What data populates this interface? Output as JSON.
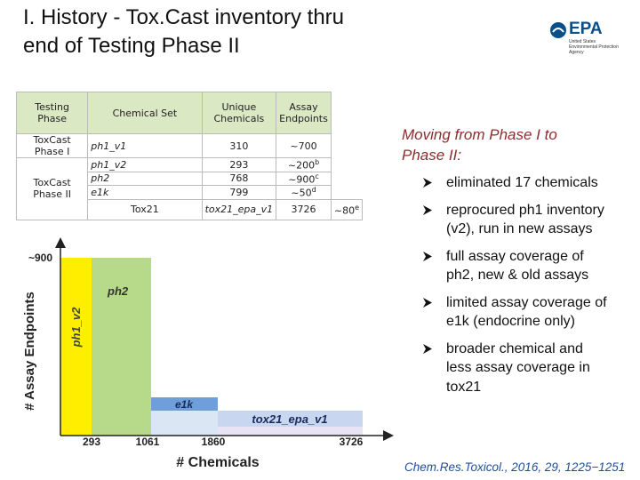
{
  "header": {
    "title_lines": [
      "I. History - Tox.Cast inventory thru",
      "end of Testing Phase II"
    ],
    "logo": {
      "acronym": "EPA",
      "agency_lines": [
        "United States",
        "Environmental Protection",
        "Agency"
      ]
    }
  },
  "table": {
    "columns": [
      "Testing Phase",
      "Chemical Set",
      "Unique Chemicals",
      "Assay Endpoints"
    ],
    "rows": [
      {
        "phase": "ToxCast Phase I",
        "set": "ph1_v1",
        "chemicals": "310",
        "endpoints": "~700",
        "note": ""
      },
      {
        "phase": "ToxCast Phase II",
        "set": "ph1_v2",
        "chemicals": "293",
        "endpoints": "~200",
        "note": "b"
      },
      {
        "phase": "",
        "set": "ph2",
        "chemicals": "768",
        "endpoints": "~900",
        "note": "c"
      },
      {
        "phase": "",
        "set": "e1k",
        "chemicals": "799",
        "endpoints": "~50",
        "note": "d"
      },
      {
        "phase": "Tox21",
        "set": "tox21_epa_v1",
        "chemicals": "3726",
        "endpoints": "~80",
        "note": "e"
      }
    ]
  },
  "diagram": {
    "y_axis_label": "# Assay Endpoints",
    "x_axis_label": "# Chemicals",
    "y_mark": "~900",
    "x_marks": [
      "293",
      "1061",
      "1860",
      "3726"
    ],
    "regions": [
      "ph1_v2",
      "ph2",
      "e1k",
      "tox21_epa_v1"
    ]
  },
  "bullets": {
    "heading_lines": [
      "Moving from Phase I to",
      "Phase II:"
    ],
    "items": [
      [
        "eliminated 17 chemicals"
      ],
      [
        "reprocured ph1 inventory",
        "(v2), run in new assays"
      ],
      [
        "full assay coverage of",
        "ph2, new & old assays"
      ],
      [
        "limited assay coverage of",
        "e1k (endocrine only)"
      ],
      [
        "broader chemical and",
        "less assay coverage in",
        "tox21"
      ]
    ]
  },
  "citation": "Chem.Res.Toxicol., 2016, 29, 1225−1251"
}
